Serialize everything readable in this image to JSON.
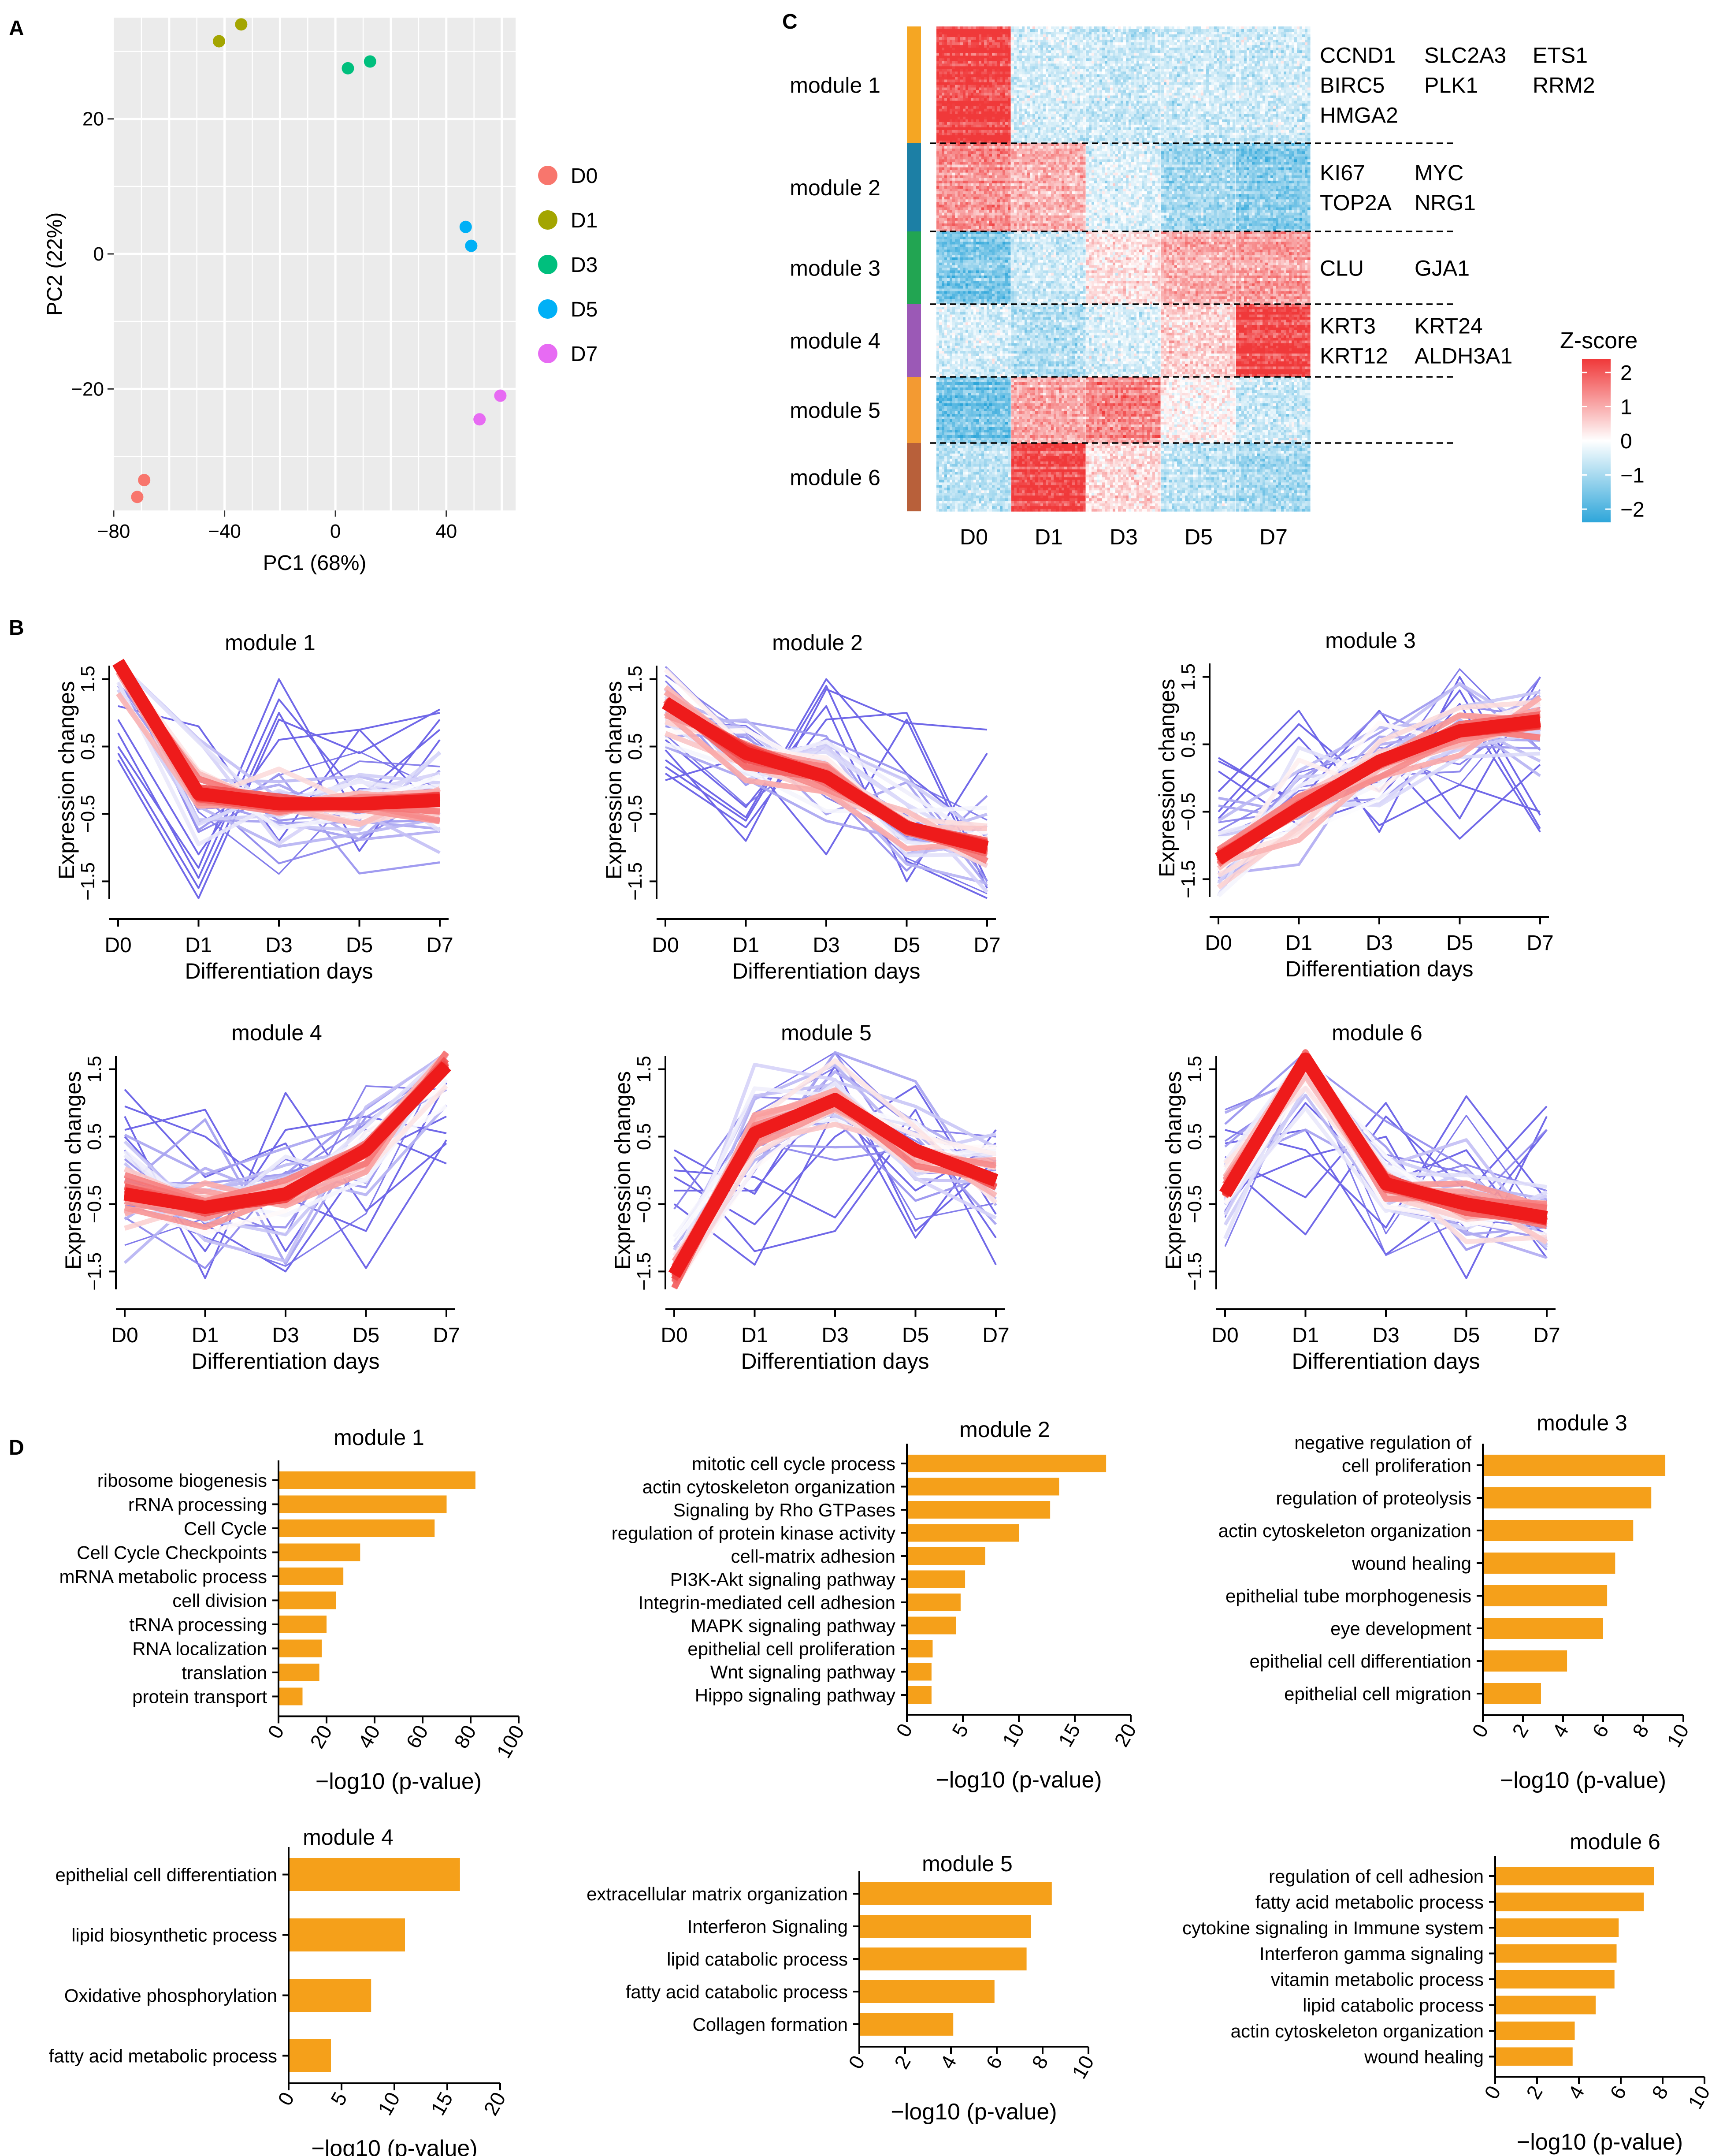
{
  "panel_labels": [
    "A",
    "B",
    "C",
    "D"
  ],
  "chart_data": [
    {
      "id": "pca",
      "type": "scatter",
      "xlabel": "PC1 (68%)",
      "ylabel": "PC2 (22%)",
      "xlim": [
        -80,
        65
      ],
      "ylim": [
        -38,
        35
      ],
      "xticks": [
        -80,
        -40,
        0,
        40
      ],
      "yticks": [
        -20,
        0,
        20
      ],
      "grid": true,
      "legend_position": "right",
      "series": [
        {
          "name": "D0",
          "color": "#F8766D",
          "points": [
            [
              -69,
              -33.5
            ],
            [
              -71.5,
              -36
            ]
          ]
        },
        {
          "name": "D1",
          "color": "#A3A500",
          "points": [
            [
              -42,
              31.5
            ],
            [
              -34,
              34
            ]
          ]
        },
        {
          "name": "D3",
          "color": "#00BF7D",
          "points": [
            [
              4.5,
              27.5
            ],
            [
              12.5,
              28.5
            ]
          ]
        },
        {
          "name": "D5",
          "color": "#00B0F6",
          "points": [
            [
              47,
              4
            ],
            [
              49,
              1.2
            ]
          ]
        },
        {
          "name": "D7",
          "color": "#E76BF3",
          "points": [
            [
              52,
              -24.5
            ],
            [
              59.5,
              -21
            ]
          ]
        }
      ]
    },
    {
      "id": "heatmap",
      "type": "heatmap",
      "columns": [
        "D0",
        "D1",
        "D3",
        "D5",
        "D7"
      ],
      "legend_title": "Z-score",
      "scale_ticks": [
        2,
        1,
        0,
        -1,
        -2
      ],
      "scale_colors": {
        "high": "#F0393A",
        "mid": "#FFFFFF",
        "low": "#2EA6DA"
      },
      "modules": [
        {
          "name": "module 1",
          "color": "#F5A623",
          "profile": [
            2.0,
            -0.4,
            -0.5,
            -0.45,
            -0.45
          ],
          "genes": [
            "CCND1",
            "SLC2A3",
            "ETS1",
            "BIRC5",
            "PLK1",
            "RRM2",
            "HMGA2"
          ]
        },
        {
          "name": "module 2",
          "color": "#1C7FA5",
          "profile": [
            1.1,
            0.75,
            -0.3,
            -0.85,
            -1.1
          ],
          "genes": [
            "KI67",
            "MYC",
            "TOP2A",
            "NRG1"
          ]
        },
        {
          "name": "module 3",
          "color": "#22A552",
          "profile": [
            -1.2,
            -0.45,
            0.3,
            0.8,
            0.95
          ],
          "genes": [
            "CLU",
            "GJA1"
          ]
        },
        {
          "name": "module 4",
          "color": "#9B59B6",
          "profile": [
            -0.4,
            -0.7,
            -0.35,
            0.45,
            1.9
          ],
          "genes": [
            "KRT3",
            "KRT24",
            "KRT12",
            "ALDH3A1"
          ]
        },
        {
          "name": "module 5",
          "color": "#F39A32",
          "profile": [
            -1.3,
            0.85,
            1.2,
            0.1,
            -0.5
          ],
          "genes": []
        },
        {
          "name": "module 6",
          "color": "#B8603A",
          "profile": [
            -0.6,
            1.8,
            0.35,
            -0.6,
            -0.8
          ],
          "genes": []
        }
      ]
    },
    {
      "id": "trends",
      "type": "line",
      "xlabel": "Differentiation days",
      "ylabel": "Expression changes",
      "categories": [
        "D0",
        "D1",
        "D3",
        "D5",
        "D7"
      ],
      "ylim": [
        -1.7,
        1.7
      ],
      "yticks": [
        1.5,
        0.5,
        -0.5,
        -1.5
      ],
      "colors": {
        "core": "#EE1B1B",
        "mid": "#FFFFFF",
        "outer": "#7068E8"
      },
      "panels": [
        {
          "title": "module 1",
          "core": [
            1.75,
            -0.2,
            -0.35,
            -0.35,
            -0.3
          ],
          "outliers": [
            [
              0.7,
              -1.45,
              1.2,
              -0.25,
              0.75
            ],
            [
              0.3,
              -1.75,
              0.9,
              0.4,
              1.05
            ],
            [
              1.1,
              0.8,
              -0.9,
              0.75,
              -0.5
            ],
            [
              0.5,
              -1.3,
              1.5,
              -0.6,
              0.9
            ],
            [
              0.9,
              -1.1,
              0.6,
              0.75,
              1.0
            ],
            [
              0.4,
              -1.6,
              1.0,
              -1.05,
              0.6
            ]
          ]
        },
        {
          "title": "module 2",
          "core": [
            1.15,
            0.4,
            0.05,
            -0.7,
            -1.0
          ],
          "outliers": [
            [
              0.3,
              -0.55,
              1.5,
              0.1,
              -0.85
            ],
            [
              0.45,
              -0.9,
              1.35,
              0.85,
              0.75
            ],
            [
              0.1,
              -0.7,
              0.9,
              1.0,
              -1.5
            ],
            [
              0.0,
              0.35,
              -1.1,
              0.9,
              -1.6
            ],
            [
              0.6,
              -0.4,
              1.1,
              -1.5,
              0.4
            ],
            [
              0.2,
              -0.6,
              1.4,
              -1.2,
              -1.75
            ]
          ]
        },
        {
          "title": "module 3",
          "core": [
            -1.2,
            -0.45,
            0.25,
            0.7,
            0.85
          ],
          "outliers": [
            [
              0.25,
              -0.35,
              1.0,
              -0.6,
              1.5
            ],
            [
              -0.2,
              1.0,
              -0.8,
              1.5,
              -0.55
            ],
            [
              0.1,
              -0.7,
              -0.3,
              1.1,
              -0.8
            ],
            [
              -0.6,
              0.6,
              -0.7,
              -0.1,
              -0.5
            ],
            [
              0.3,
              -0.4,
              0.4,
              -0.9,
              0.2
            ],
            [
              -0.5,
              0.8,
              -0.2,
              1.3,
              -0.75
            ]
          ]
        },
        {
          "title": "module 4",
          "core": [
            -0.35,
            -0.55,
            -0.35,
            0.3,
            1.55
          ],
          "outliers": [
            [
              0.8,
              -1.6,
              1.15,
              -0.6,
              0.4
            ],
            [
              0.5,
              -0.8,
              -1.5,
              0.2,
              0.8
            ],
            [
              1.2,
              -0.1,
              0.4,
              -1.45,
              0.45
            ],
            [
              0.6,
              0.9,
              -1.2,
              0.6,
              0.1
            ],
            [
              0.95,
              0.5,
              -0.4,
              -0.9,
              1.3
            ],
            [
              0.3,
              -1.2,
              0.6,
              0.8,
              0.55
            ]
          ]
        },
        {
          "title": "module 5",
          "core": [
            -1.55,
            0.55,
            1.05,
            0.3,
            -0.15
          ],
          "outliers": [
            [
              0.3,
              -0.35,
              1.55,
              -0.9,
              0.15
            ],
            [
              -0.1,
              -0.8,
              0.5,
              1.25,
              -0.65
            ],
            [
              0.2,
              -1.2,
              -0.9,
              0.75,
              -1.0
            ],
            [
              -0.3,
              -0.3,
              1.2,
              -1.0,
              0.6
            ],
            [
              0.0,
              -0.1,
              -0.7,
              0.9,
              -1.4
            ],
            [
              -0.5,
              -1.4,
              0.9,
              -0.3,
              0.4
            ]
          ]
        },
        {
          "title": "module 6",
          "core": [
            -0.35,
            1.65,
            -0.2,
            -0.5,
            -0.7
          ],
          "outliers": [
            [
              0.4,
              0.6,
              -1.25,
              -0.35,
              0.95
            ],
            [
              -0.3,
              0.2,
              0.5,
              -1.6,
              0.8
            ],
            [
              0.1,
              -0.95,
              0.8,
              -0.3,
              -0.95
            ],
            [
              0.6,
              0.3,
              -0.85,
              1.1,
              -0.45
            ],
            [
              -0.6,
              1.0,
              -0.2,
              0.3,
              -1.3
            ],
            [
              0.2,
              -0.4,
              1.0,
              -0.9,
              0.6
            ]
          ]
        }
      ]
    },
    {
      "id": "go_enrichment",
      "type": "bar",
      "orientation": "horizontal",
      "xlabel": "−log10 (p-value)",
      "bar_color": "#F5A01A",
      "panels": [
        {
          "title": "module 1",
          "xlim": [
            0,
            100
          ],
          "xticks": [
            0,
            20,
            40,
            60,
            80,
            100
          ],
          "categories": [
            "ribosome biogenesis",
            "rRNA processing",
            "Cell Cycle",
            "Cell Cycle Checkpoints",
            "mRNA metabolic process",
            "cell division",
            "tRNA processing",
            "RNA localization",
            "translation",
            "protein transport"
          ],
          "values": [
            82,
            70,
            65,
            34,
            27,
            24,
            20,
            18,
            17,
            10
          ]
        },
        {
          "title": "module 2",
          "xlim": [
            0,
            20
          ],
          "xticks": [
            0,
            5,
            10,
            15,
            20
          ],
          "categories": [
            "mitotic cell cycle process",
            "actin cytoskeleton organization",
            "Signaling by Rho GTPases",
            "regulation of protein kinase activity",
            "cell-matrix adhesion",
            "PI3K-Akt signaling pathway",
            "Integrin-mediated cell adhesion",
            "MAPK signaling pathway",
            "epithelial cell proliferation",
            "Wnt signaling pathway",
            "Hippo signaling pathway"
          ],
          "values": [
            17.8,
            13.6,
            12.8,
            10.0,
            7.0,
            5.2,
            4.8,
            4.4,
            2.3,
            2.2,
            2.2
          ]
        },
        {
          "title": "module 3",
          "xlim": [
            0,
            10
          ],
          "xticks": [
            0,
            2,
            4,
            6,
            8,
            10
          ],
          "categories": [
            "negative regulation of\ncell proliferation",
            "regulation of proteolysis",
            "actin cytoskeleton organization",
            "wound healing",
            "epithelial tube morphogenesis",
            "eye development",
            "epithelial cell differentiation",
            "epithelial cell migration"
          ],
          "values": [
            9.1,
            8.4,
            7.5,
            6.6,
            6.2,
            6.0,
            4.2,
            2.9
          ]
        },
        {
          "title": "module 4",
          "xlim": [
            0,
            20
          ],
          "xticks": [
            0,
            5,
            10,
            15,
            20
          ],
          "categories": [
            "epithelial cell differentiation",
            "lipid biosynthetic process",
            "Oxidative phosphorylation",
            "fatty acid metabolic process"
          ],
          "values": [
            16.2,
            11.0,
            7.8,
            4.0
          ]
        },
        {
          "title": "module 5",
          "xlim": [
            0,
            10
          ],
          "xticks": [
            0,
            2,
            4,
            6,
            8,
            10
          ],
          "categories": [
            "extracellular matrix organization",
            "Interferon Signaling",
            "lipid catabolic process",
            "fatty acid catabolic process",
            "Collagen formation"
          ],
          "values": [
            8.4,
            7.5,
            7.3,
            5.9,
            4.1
          ]
        },
        {
          "title": "module 6",
          "xlim": [
            0,
            10
          ],
          "xticks": [
            0,
            2,
            4,
            6,
            8,
            10
          ],
          "categories": [
            "regulation of cell adhesion",
            "fatty acid metabolic process",
            "cytokine signaling in Immune system",
            "Interferon gamma signaling",
            "vitamin metabolic process",
            "lipid catabolic process",
            "actin cytoskeleton organization",
            "wound healing"
          ],
          "values": [
            7.6,
            7.1,
            5.9,
            5.8,
            5.7,
            4.8,
            3.8,
            3.7
          ]
        }
      ]
    }
  ]
}
